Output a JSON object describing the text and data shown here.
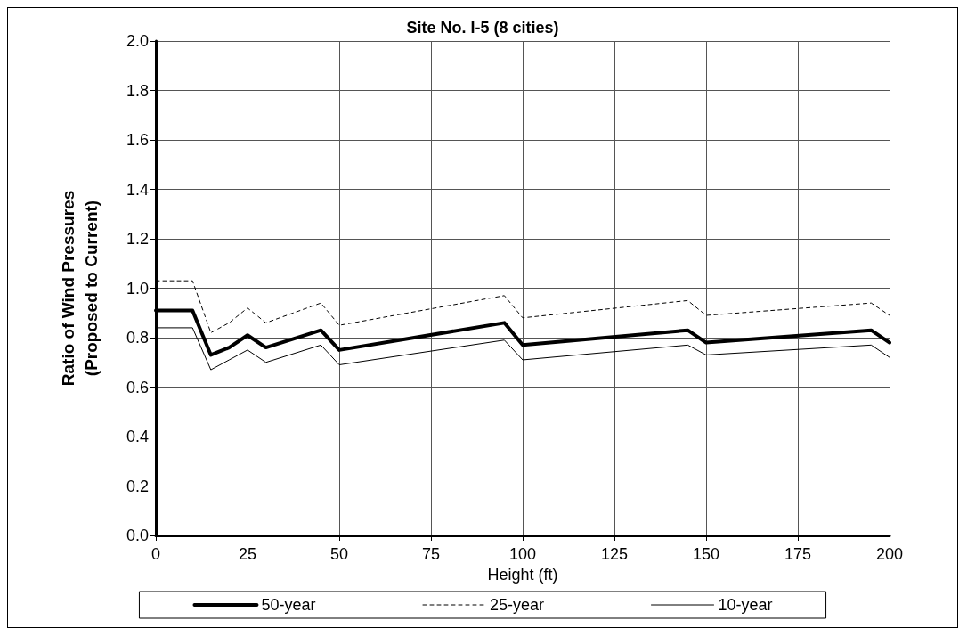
{
  "chart_data": {
    "type": "line",
    "title": "Site No. I-5 (8 cities)",
    "xlabel": "Height (ft)",
    "ylabel": "Ratio of Wind Pressures\n(Proposed to Current)",
    "x": [
      0,
      10,
      15,
      20,
      25,
      30,
      45,
      50,
      95,
      100,
      145,
      150,
      195,
      200
    ],
    "series": [
      {
        "name": "50-year",
        "color": "#000000",
        "line_style": "solid",
        "values": [
          0.91,
          0.91,
          0.73,
          0.76,
          0.81,
          0.76,
          0.83,
          0.75,
          0.86,
          0.77,
          0.83,
          0.78,
          0.83,
          0.78
        ]
      },
      {
        "name": "25-year",
        "color": "#000000",
        "line_style": "dashed",
        "values": [
          1.03,
          1.03,
          0.82,
          0.86,
          0.92,
          0.86,
          0.94,
          0.85,
          0.97,
          0.88,
          0.95,
          0.89,
          0.94,
          0.89
        ]
      },
      {
        "name": "10-year",
        "color": "#000000",
        "line_style": "solid",
        "values": [
          0.84,
          0.84,
          0.67,
          0.71,
          0.75,
          0.7,
          0.77,
          0.69,
          0.79,
          0.71,
          0.77,
          0.73,
          0.77,
          0.72
        ]
      }
    ],
    "xlim": [
      0,
      200
    ],
    "xticks": [
      0,
      25,
      50,
      75,
      100,
      125,
      150,
      175,
      200
    ],
    "ylim": [
      0,
      2
    ],
    "yticks": [
      {
        "value": 0,
        "label": "0.0"
      },
      {
        "value": 0.2,
        "label": "0.2"
      },
      {
        "value": 0.4,
        "label": "0.4"
      },
      {
        "value": 0.6,
        "label": "0.6"
      },
      {
        "value": 0.8,
        "label": "0.8"
      },
      {
        "value": 1,
        "label": "1.0"
      },
      {
        "value": 1.2,
        "label": "1.2"
      },
      {
        "value": 1.4,
        "label": "1.4"
      },
      {
        "value": 1.6,
        "label": "1.6"
      },
      {
        "value": 1.8,
        "label": "1.8"
      },
      {
        "value": 2,
        "label": "2.0"
      }
    ],
    "grid": true,
    "legend": "bottom",
    "marker": "none"
  }
}
